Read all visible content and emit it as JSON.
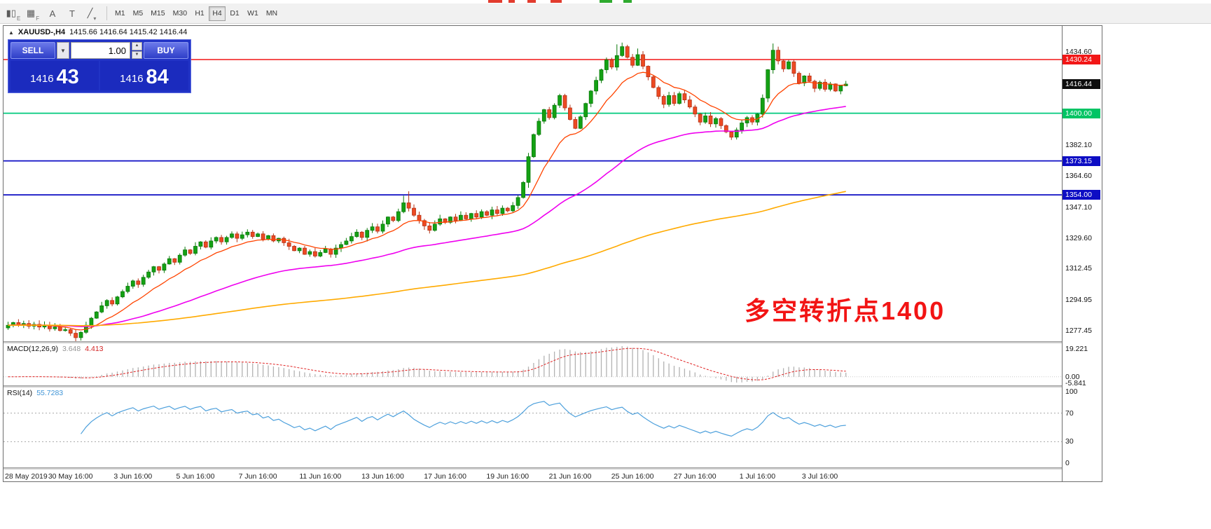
{
  "top_fragments": [
    {
      "x": 697,
      "w": 20,
      "color": "#e23b2e"
    },
    {
      "x": 726,
      "w": 9,
      "color": "#e23b2e"
    },
    {
      "x": 753,
      "w": 12,
      "color": "#e23b2e"
    },
    {
      "x": 786,
      "w": 16,
      "color": "#e23b2e"
    },
    {
      "x": 856,
      "w": 18,
      "color": "#2faa2f"
    },
    {
      "x": 890,
      "w": 12,
      "color": "#2faa2f"
    }
  ],
  "toolbar": {
    "tools": [
      {
        "name": "chart-window-icon",
        "glyph": "▮▯",
        "sub": "E"
      },
      {
        "name": "grid-window-icon",
        "glyph": "▦",
        "sub": "F"
      },
      {
        "name": "cursor-tool-icon",
        "glyph": "A",
        "sub": ""
      },
      {
        "name": "text-tool-icon",
        "glyph": "T",
        "sub": ""
      },
      {
        "name": "shapes-tool-icon",
        "glyph": "╱",
        "sub": "▾"
      }
    ],
    "timeframes": [
      "M1",
      "M5",
      "M15",
      "M30",
      "H1",
      "H4",
      "D1",
      "W1",
      "MN"
    ],
    "active_timeframe": "H4"
  },
  "trade_panel": {
    "sell_label": "SELL",
    "buy_label": "BUY",
    "volume": "1.00",
    "dropdown_glyph": "▼",
    "spin_up_glyph": "▲",
    "spin_down_glyph": "▼",
    "sell_price": "1416",
    "sell_pips": "43",
    "buy_price": "1416",
    "buy_pips": "84"
  },
  "chart": {
    "header_icon": "▲",
    "header_symbol": "XAUUSD-,H4",
    "header_ohlc": "1415.66 1416.64 1415.42 1416.44",
    "annotation": "多空转折点1400"
  },
  "macd": {
    "title": "MACD(12,26,9)",
    "value1": "3.648",
    "value2": "4.413",
    "axis": [
      "19.221",
      "0.00",
      "-5.841"
    ]
  },
  "rsi": {
    "title": "RSI(14)",
    "value": "55.7283",
    "axis": [
      {
        "label": "100",
        "value": 100
      },
      {
        "label": "70",
        "value": 70
      },
      {
        "label": "30",
        "value": 30
      },
      {
        "label": "0",
        "value": 0
      }
    ]
  },
  "time_axis": {
    "labels": [
      {
        "idx": 0,
        "text": "28 May 2019"
      },
      {
        "idx": 12,
        "text": "30 May 16:00"
      },
      {
        "idx": 24,
        "text": "3 Jun 16:00"
      },
      {
        "idx": 36,
        "text": "5 Jun 16:00"
      },
      {
        "idx": 48,
        "text": "7 Jun 16:00"
      },
      {
        "idx": 60,
        "text": "11 Jun 16:00"
      },
      {
        "idx": 72,
        "text": "13 Jun 16:00"
      },
      {
        "idx": 84,
        "text": "17 Jun 16:00"
      },
      {
        "idx": 96,
        "text": "19 Jun 16:00"
      },
      {
        "idx": 108,
        "text": "21 Jun 16:00"
      },
      {
        "idx": 120,
        "text": "25 Jun 16:00"
      },
      {
        "idx": 132,
        "text": "27 Jun 16:00"
      },
      {
        "idx": 144,
        "text": "1 Jul 16:00"
      },
      {
        "idx": 156,
        "text": "3 Jul 16:00"
      }
    ]
  },
  "chart_data": {
    "type": "candlestick",
    "symbol": "XAUUSD",
    "timeframe": "H4",
    "last_price": 1416.44,
    "price_top": 1449.2,
    "price_bottom": 1271.5,
    "up_color": "#14a114",
    "down_color": "#ed4a23",
    "up_stroke": "#0a7a0a",
    "down_stroke": "#b43216",
    "closes": [
      1280.5,
      1282.0,
      1280.5,
      1281.5,
      1280.0,
      1281.0,
      1279.5,
      1280.5,
      1278.5,
      1279.5,
      1277.5,
      1278.0,
      1276.0,
      1273.5,
      1276.5,
      1280.5,
      1284.5,
      1288.0,
      1291.5,
      1294.5,
      1292.5,
      1296.5,
      1299.5,
      1302.5,
      1305.5,
      1303.5,
      1307.5,
      1310.5,
      1313.5,
      1311.5,
      1315.0,
      1318.0,
      1316.0,
      1320.0,
      1323.0,
      1321.0,
      1325.0,
      1327.5,
      1324.5,
      1328.0,
      1330.0,
      1327.5,
      1330.0,
      1332.0,
      1329.5,
      1331.5,
      1333.0,
      1330.5,
      1332.0,
      1329.0,
      1331.0,
      1328.0,
      1329.5,
      1327.0,
      1325.0,
      1322.5,
      1324.0,
      1320.5,
      1322.0,
      1319.5,
      1321.5,
      1323.5,
      1320.5,
      1324.0,
      1326.0,
      1328.0,
      1330.5,
      1333.0,
      1330.0,
      1334.0,
      1336.0,
      1333.5,
      1337.5,
      1341.5,
      1339.5,
      1344.5,
      1349.5,
      1346.5,
      1342.5,
      1339.5,
      1336.5,
      1334.0,
      1337.5,
      1340.5,
      1338.5,
      1341.5,
      1339.5,
      1342.5,
      1340.5,
      1343.5,
      1341.5,
      1344.5,
      1342.5,
      1345.5,
      1343.5,
      1346.5,
      1345.0,
      1348.0,
      1352.5,
      1361.0,
      1375.5,
      1388.0,
      1395.5,
      1402.0,
      1397.5,
      1404.5,
      1410.0,
      1403.0,
      1396.5,
      1391.5,
      1398.0,
      1405.5,
      1412.5,
      1418.5,
      1424.5,
      1430.0,
      1426.0,
      1432.5,
      1437.5,
      1431.5,
      1427.0,
      1433.0,
      1426.5,
      1420.5,
      1414.5,
      1409.5,
      1405.0,
      1410.0,
      1405.5,
      1411.0,
      1407.5,
      1403.5,
      1399.5,
      1395.0,
      1398.5,
      1394.0,
      1397.0,
      1393.0,
      1389.5,
      1386.5,
      1390.5,
      1394.5,
      1397.5,
      1395.0,
      1399.5,
      1408.5,
      1424.5,
      1435.5,
      1429.5,
      1425.0,
      1429.0,
      1422.5,
      1417.0,
      1421.0,
      1418.0,
      1414.0,
      1417.5,
      1413.5,
      1416.5,
      1412.5,
      1415.5,
      1416.44
    ],
    "wick_overrides": {
      "13": {
        "low": 1270.8
      },
      "76": {
        "high": 1353.5
      },
      "77": {
        "high": 1356.0
      },
      "100": {
        "low": 1358.0
      },
      "117": {
        "high": 1438.8
      },
      "118": {
        "high": 1439.8
      },
      "121": {
        "high": 1436.5
      },
      "147": {
        "high": 1439.3
      },
      "148": {
        "high": 1437.5
      }
    },
    "moving_averages": [
      {
        "period": 12,
        "color": "#ff4400",
        "width": 1.3
      },
      {
        "period": 55,
        "color": "#ef00ef",
        "width": 1.6
      },
      {
        "period": 200,
        "color": "#ffaa00",
        "width": 1.6
      }
    ],
    "hlines": [
      {
        "value": 1430.24,
        "color": "#f21616",
        "width": 1.4
      },
      {
        "value": 1400.0,
        "color": "#00c97c",
        "width": 1.8
      },
      {
        "value": 1373.15,
        "color": "#0d0dc4",
        "width": 1.8
      },
      {
        "value": 1354.0,
        "color": "#0d0dc4",
        "width": 1.8
      }
    ],
    "y_ticks": [
      {
        "label": "1434.60",
        "value": 1434.6,
        "style": "plain"
      },
      {
        "label": "1430.24",
        "value": 1430.24,
        "style": "red"
      },
      {
        "label": "1416.44",
        "value": 1416.44,
        "style": "black"
      },
      {
        "label": "1400.00",
        "value": 1400.0,
        "style": "green"
      },
      {
        "label": "1382.10",
        "value": 1382.1,
        "style": "plain"
      },
      {
        "label": "1373.15",
        "value": 1373.15,
        "style": "blue"
      },
      {
        "label": "1364.60",
        "value": 1364.6,
        "style": "plain"
      },
      {
        "label": "1354.00",
        "value": 1354.0,
        "style": "blue"
      },
      {
        "label": "1347.10",
        "value": 1347.1,
        "style": "plain"
      },
      {
        "label": "1329.60",
        "value": 1329.6,
        "style": "plain"
      },
      {
        "label": "1312.45",
        "value": 1312.45,
        "style": "plain"
      },
      {
        "label": "1294.95",
        "value": 1294.95,
        "style": "plain"
      },
      {
        "label": "1277.45",
        "value": 1277.45,
        "style": "plain"
      }
    ],
    "rsi_levels": [
      70,
      30
    ]
  }
}
